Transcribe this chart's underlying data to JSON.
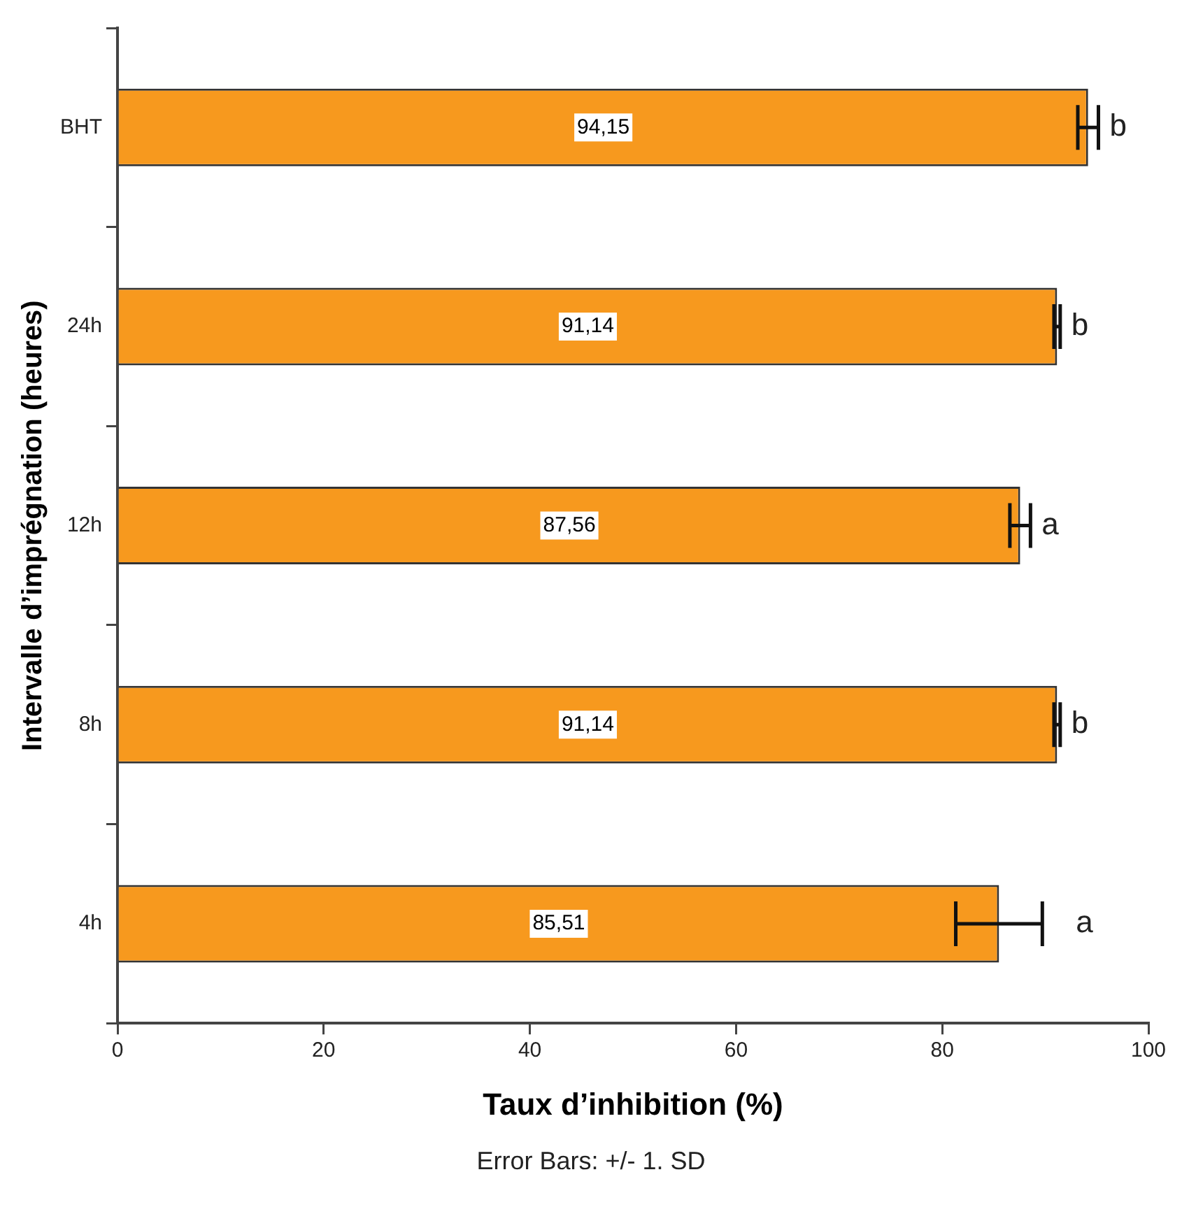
{
  "chart_data": {
    "type": "bar",
    "orientation": "horizontal",
    "xlabel": "Taux d’inhibition (%)",
    "ylabel": "Intervalle d’imprégnation (heures)",
    "categories": [
      "BHT",
      "24h",
      "12h",
      "8h",
      "4h"
    ],
    "values": [
      94.15,
      91.14,
      87.56,
      91.14,
      85.51
    ],
    "errors": [
      1.0,
      0.3,
      1.0,
      0.3,
      4.2
    ],
    "color": "#f7991e",
    "value_labels": [
      "94,15",
      "91,14",
      "87,56",
      "91,14",
      "85,51"
    ],
    "xlim": [
      0,
      100
    ],
    "xticks": [
      0,
      20,
      40,
      60,
      80,
      100
    ],
    "grid": false,
    "legend": false,
    "annotations": [
      "b",
      "b",
      "a",
      "b",
      "a",
      "Error Bars: +/- 1. SD"
    ]
  }
}
